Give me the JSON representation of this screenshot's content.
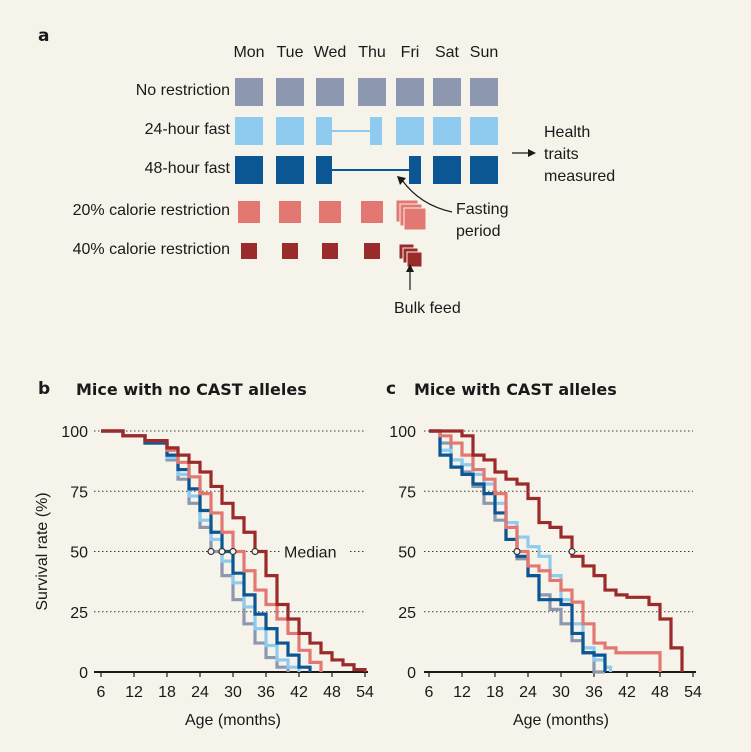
{
  "panel_a": {
    "letter": "a",
    "days": [
      "Mon",
      "Tue",
      "Wed",
      "Thu",
      "Fri",
      "Sat",
      "Sun"
    ],
    "rows": [
      {
        "label": "No restriction",
        "color": "#8e97b0"
      },
      {
        "label": "24-hour fast",
        "color": "#8ecbee"
      },
      {
        "label": "48-hour fast",
        "color": "#0d5694"
      },
      {
        "label": "20% calorie restriction",
        "color": "#e37873"
      },
      {
        "label": "40% calorie restriction",
        "color": "#9b2a2b"
      }
    ],
    "health_traits": "Health traits measured",
    "health_lines": [
      "Health",
      "traits",
      "measured"
    ],
    "fasting_lines": [
      "Fasting",
      "period"
    ],
    "bulk_feed": "Bulk feed"
  },
  "panel_b": {
    "letter": "b",
    "title": "Mice with no CAST alleles"
  },
  "panel_c": {
    "letter": "c",
    "title": "Mice with CAST alleles"
  },
  "chart_data": [
    {
      "type": "line",
      "title": "Mice with no CAST alleles",
      "xlabel": "Age (months)",
      "ylabel": "Survival rate (%)",
      "xlim": [
        6,
        54
      ],
      "ylim": [
        0,
        100
      ],
      "xticks": [
        6,
        12,
        18,
        24,
        30,
        36,
        42,
        48,
        54
      ],
      "yticks": [
        0,
        25,
        50,
        75,
        100
      ],
      "annotation": "Median",
      "series": [
        {
          "name": "No restriction",
          "color": "#8e97b0",
          "x": [
            6,
            10,
            14,
            18,
            20,
            22,
            24,
            26,
            28,
            30,
            32,
            34,
            36,
            38,
            40
          ],
          "y": [
            100,
            98,
            95,
            88,
            80,
            70,
            60,
            50,
            40,
            30,
            20,
            12,
            6,
            2,
            0
          ]
        },
        {
          "name": "24-hour fast",
          "color": "#8ecbee",
          "x": [
            6,
            10,
            14,
            18,
            20,
            22,
            24,
            26,
            28,
            30,
            32,
            34,
            36,
            38,
            40,
            42
          ],
          "y": [
            100,
            98,
            95,
            89,
            82,
            73,
            63,
            55,
            46,
            37,
            27,
            18,
            11,
            5,
            2,
            0
          ]
        },
        {
          "name": "48-hour fast",
          "color": "#0d5694",
          "x": [
            6,
            10,
            14,
            18,
            20,
            22,
            24,
            26,
            28,
            30,
            32,
            34,
            36,
            38,
            40,
            42,
            44
          ],
          "y": [
            100,
            98,
            95,
            90,
            84,
            76,
            67,
            58,
            50,
            41,
            32,
            24,
            18,
            12,
            7,
            2,
            0
          ]
        },
        {
          "name": "20% calorie restriction",
          "color": "#e37873",
          "x": [
            6,
            10,
            14,
            18,
            20,
            22,
            24,
            26,
            28,
            30,
            32,
            34,
            36,
            38,
            40,
            42,
            44,
            46
          ],
          "y": [
            100,
            98,
            96,
            92,
            87,
            81,
            74,
            66,
            58,
            50,
            42,
            34,
            28,
            22,
            16,
            9,
            4,
            0
          ]
        },
        {
          "name": "40% calorie restriction",
          "color": "#9b2a2b",
          "x": [
            6,
            10,
            14,
            18,
            20,
            22,
            24,
            26,
            28,
            30,
            32,
            34,
            36,
            38,
            40,
            42,
            44,
            46,
            48,
            50,
            52,
            54
          ],
          "y": [
            100,
            98,
            96,
            93,
            90,
            87,
            83,
            77,
            70,
            64,
            58,
            50,
            40,
            28,
            22,
            16,
            12,
            8,
            5,
            3,
            1,
            0
          ]
        }
      ]
    },
    {
      "type": "line",
      "title": "Mice with CAST alleles",
      "xlabel": "Age (months)",
      "ylabel": "Survival rate (%)",
      "xlim": [
        6,
        54
      ],
      "ylim": [
        0,
        100
      ],
      "xticks": [
        6,
        12,
        18,
        24,
        30,
        36,
        42,
        48,
        54
      ],
      "yticks": [
        0,
        25,
        50,
        75,
        100
      ],
      "series": [
        {
          "name": "No restriction",
          "color": "#8e97b0",
          "x": [
            6,
            8,
            10,
            12,
            14,
            16,
            18,
            20,
            22,
            24,
            26,
            28,
            30,
            32,
            34,
            36,
            38
          ],
          "y": [
            100,
            95,
            88,
            83,
            77,
            70,
            63,
            55,
            47,
            40,
            32,
            26,
            20,
            13,
            8,
            0,
            0
          ]
        },
        {
          "name": "24-hour fast",
          "color": "#8ecbee",
          "x": [
            6,
            8,
            10,
            12,
            14,
            16,
            18,
            20,
            22,
            24,
            26,
            28,
            30,
            32,
            34,
            36,
            38,
            39
          ],
          "y": [
            100,
            92,
            88,
            86,
            82,
            78,
            70,
            62,
            56,
            52,
            48,
            40,
            30,
            20,
            10,
            5,
            2,
            0
          ]
        },
        {
          "name": "48-hour fast",
          "color": "#0d5694",
          "x": [
            6,
            8,
            10,
            12,
            14,
            16,
            18,
            20,
            22,
            24,
            26,
            28,
            30,
            32,
            34,
            36,
            38
          ],
          "y": [
            100,
            90,
            85,
            82,
            78,
            74,
            66,
            55,
            48,
            40,
            30,
            30,
            28,
            16,
            8,
            7,
            0
          ]
        },
        {
          "name": "20% calorie restriction",
          "color": "#e37873",
          "x": [
            6,
            8,
            10,
            12,
            14,
            16,
            18,
            20,
            22,
            24,
            26,
            28,
            30,
            32,
            34,
            36,
            38,
            40,
            42,
            44,
            46,
            48
          ],
          "y": [
            100,
            98,
            95,
            90,
            84,
            80,
            74,
            60,
            50,
            44,
            42,
            38,
            34,
            29,
            20,
            12,
            10,
            8,
            8,
            8,
            8,
            0
          ]
        },
        {
          "name": "40% calorie restriction",
          "color": "#9b2a2b",
          "x": [
            6,
            10,
            12,
            14,
            16,
            18,
            20,
            22,
            24,
            26,
            28,
            30,
            32,
            34,
            36,
            38,
            40,
            42,
            44,
            46,
            48,
            50,
            52
          ],
          "y": [
            100,
            100,
            98,
            90,
            88,
            83,
            80,
            78,
            72,
            62,
            60,
            56,
            48,
            44,
            40,
            34,
            32,
            31,
            31,
            28,
            22,
            10,
            0
          ]
        }
      ]
    }
  ]
}
